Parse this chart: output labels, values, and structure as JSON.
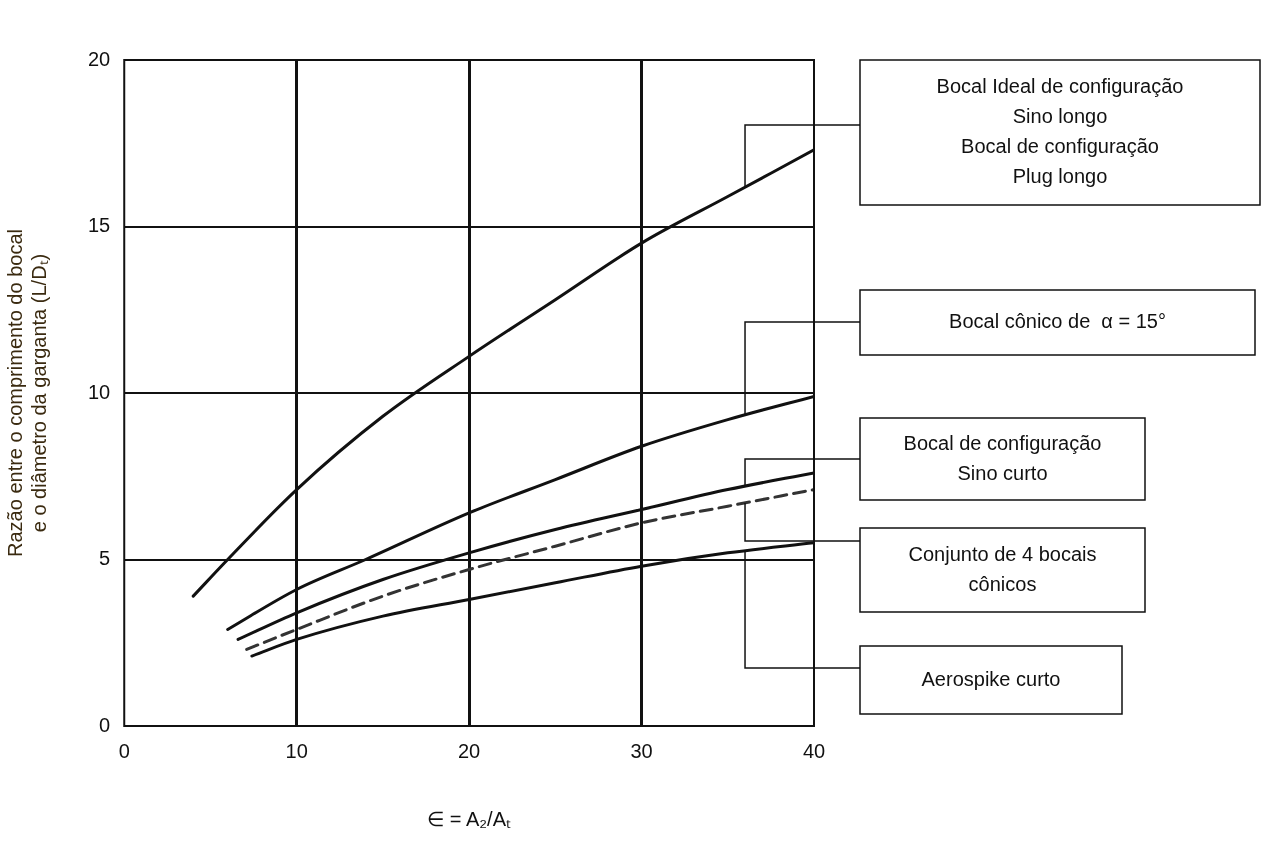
{
  "chart_data": {
    "type": "line",
    "xlabel": "∈ = A₂/Aₜ",
    "ylabel": "Razão entre o comprimento do bocal e o diâmetro da garganta (L/Dₜ)",
    "xlim": [
      0,
      40
    ],
    "xticks": [
      0,
      10,
      20,
      30,
      40
    ],
    "ylim": [
      0,
      20
    ],
    "yticks": [
      0,
      5,
      10,
      15,
      20
    ],
    "grid": true,
    "legend": false,
    "marker": "none",
    "series": [
      {
        "name": "Bocal Ideal de configuração\nSino longo\nBocal de configuração\nPlug longo",
        "color": "#111111",
        "x": [
          4,
          6,
          10,
          15,
          20,
          25,
          30,
          35,
          40
        ],
        "values": [
          3.9,
          5.0,
          7.1,
          9.3,
          11.1,
          12.8,
          14.5,
          15.9,
          17.3
        ]
      },
      {
        "name": "Bocal cônico de  α = 15°",
        "color": "#111111",
        "x": [
          6,
          10,
          14,
          20,
          25,
          30,
          35,
          40
        ],
        "values": [
          2.9,
          4.1,
          5.0,
          6.4,
          7.4,
          8.4,
          9.2,
          9.9
        ]
      },
      {
        "name": "Bocal de configuração\nSino curto",
        "color": "#111111",
        "x": [
          6.6,
          10,
          15,
          20,
          25,
          30,
          35,
          40
        ],
        "values": [
          2.6,
          3.4,
          4.4,
          5.2,
          5.9,
          6.5,
          7.1,
          7.6
        ]
      },
      {
        "name": "Conjunto de 4 bocais\ncônicos",
        "color": "#333333",
        "line_style": "dashed",
        "x": [
          7.1,
          10,
          15,
          20,
          25,
          30,
          35,
          40
        ],
        "values": [
          2.3,
          2.9,
          3.9,
          4.7,
          5.4,
          6.1,
          6.6,
          7.1
        ]
      },
      {
        "name": "Aerospike curto",
        "color": "#111111",
        "x": [
          7.4,
          10,
          15,
          20,
          25,
          30,
          35,
          40
        ],
        "values": [
          2.1,
          2.6,
          3.3,
          3.8,
          4.3,
          4.8,
          5.2,
          5.5
        ]
      }
    ]
  }
}
